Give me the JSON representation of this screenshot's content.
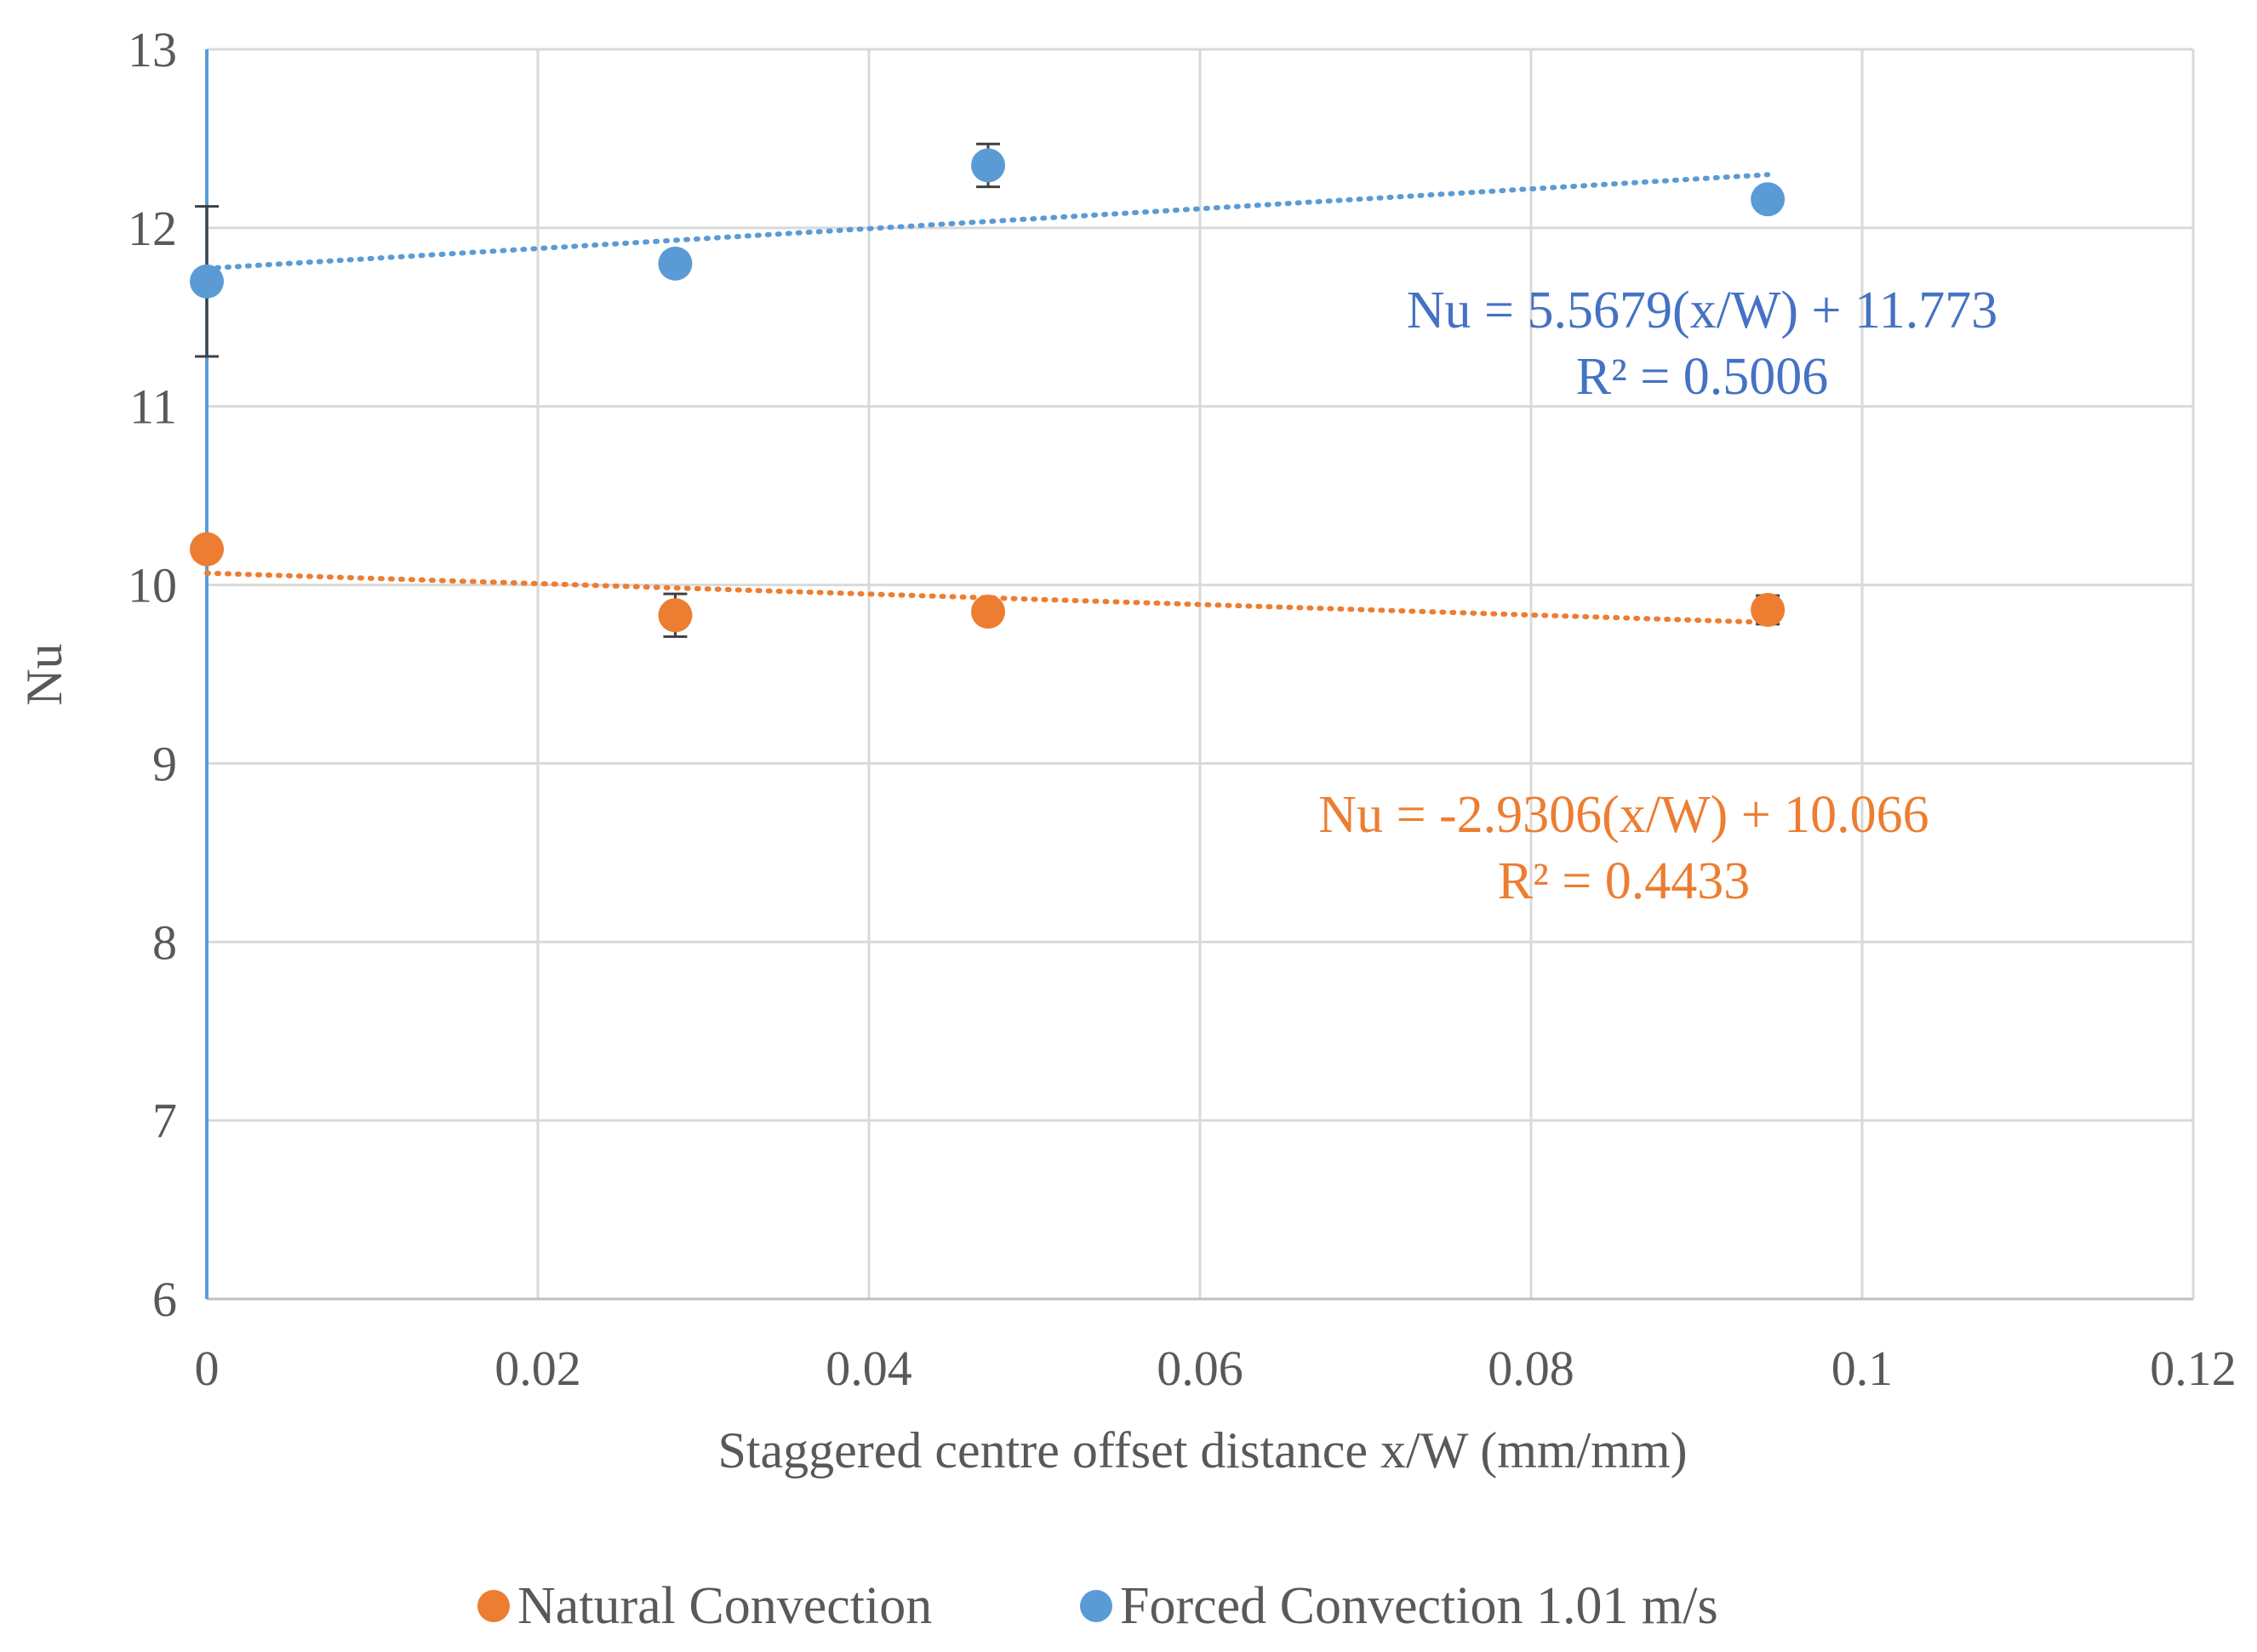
{
  "chart_data": {
    "type": "scatter",
    "title": "",
    "xlabel": "Staggered centre offset distance x/W (mm/mm)",
    "ylabel": "Nu",
    "xlim": [
      0,
      0.12
    ],
    "ylim": [
      6,
      13
    ],
    "x_ticks": [
      0,
      0.02,
      0.04,
      0.06,
      0.08,
      0.1,
      0.12
    ],
    "x_tick_labels": [
      "0",
      "0.02",
      "0.04",
      "0.06",
      "0.08",
      "0.1",
      "0.12"
    ],
    "y_ticks": [
      6,
      7,
      8,
      9,
      10,
      11,
      12,
      13
    ],
    "y_tick_labels": [
      "6",
      "7",
      "8",
      "9",
      "10",
      "11",
      "12",
      "13"
    ],
    "grid": true,
    "legend_position": "bottom",
    "series": [
      {
        "name": "Natural Convection",
        "color": "#ED7D31",
        "x": [
          0,
          0.0283,
          0.0472,
          0.0943
        ],
        "y": [
          10.2,
          9.83,
          9.85,
          9.86
        ],
        "error": [
          0.05,
          0.12,
          0.05,
          0.08
        ],
        "trendline": {
          "slope": -2.9306,
          "intercept": 10.066,
          "x_range": [
            0,
            0.0943
          ]
        },
        "equation": "Nu = -2.9306(x/W) + 10.066",
        "r_squared": "R² = 0.4433"
      },
      {
        "name": "Forced Convection 1.01 m/s",
        "color": "#5B9BD5",
        "x": [
          0,
          0.0283,
          0.0472,
          0.0943
        ],
        "y": [
          11.7,
          11.8,
          12.35,
          12.16
        ],
        "error": [
          0.42,
          0.04,
          0.12,
          0.04
        ],
        "trendline": {
          "slope": 5.5679,
          "intercept": 11.773,
          "x_range": [
            0,
            0.0943
          ]
        },
        "equation": "Nu = 5.5679(x/W) + 11.773",
        "r_squared": "R² = 0.5006"
      }
    ]
  }
}
